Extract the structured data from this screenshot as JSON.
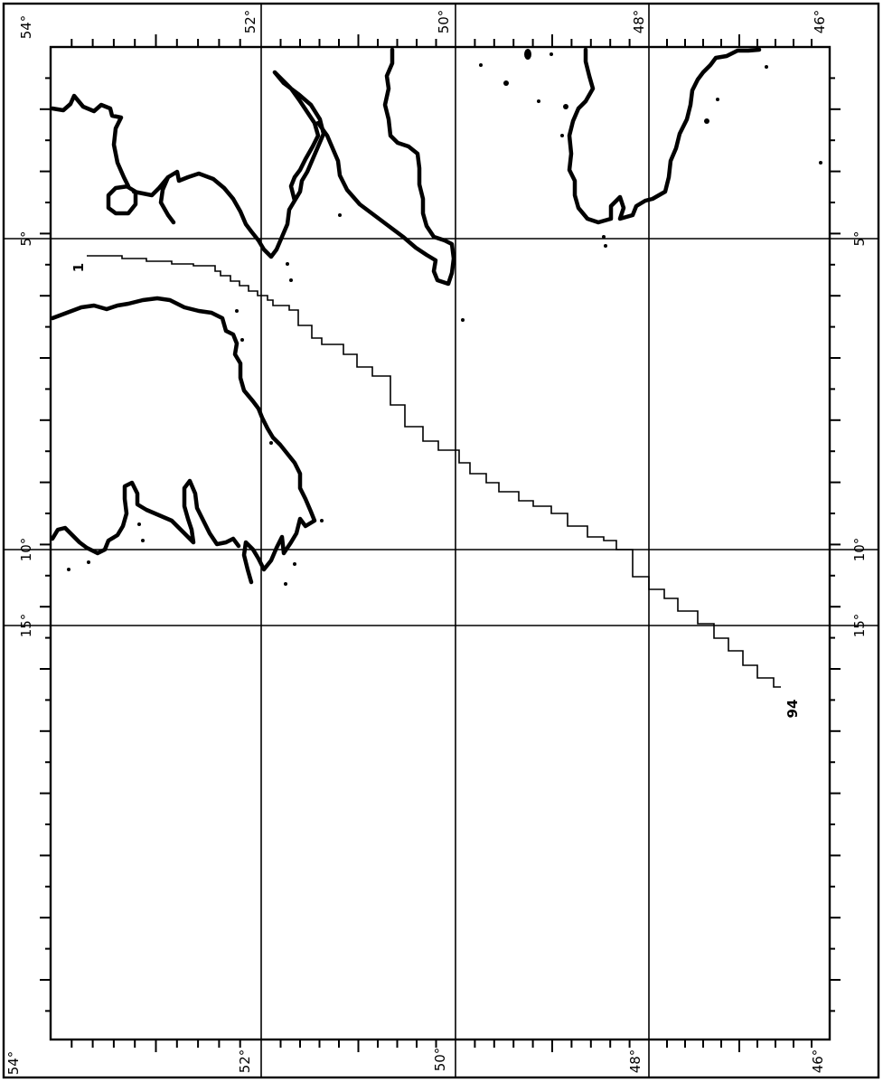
{
  "map": {
    "longitude_labels_top": [
      "54°",
      "52°",
      "50°",
      "48°",
      "46°"
    ],
    "longitude_labels_bottom": [
      "54°",
      "52°",
      "50°",
      "48°",
      "46°"
    ],
    "latitude_labels_left": [
      "5°",
      "10°",
      "15°"
    ],
    "latitude_labels_right": [
      "5°",
      "10°",
      "15°"
    ],
    "track_labels": {
      "start": "1",
      "end": "94"
    }
  }
}
